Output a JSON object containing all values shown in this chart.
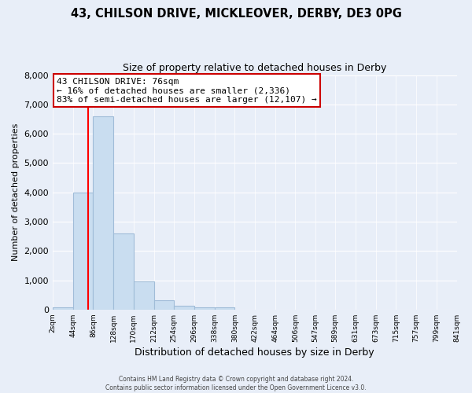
{
  "title": "43, CHILSON DRIVE, MICKLEOVER, DERBY, DE3 0PG",
  "subtitle": "Size of property relative to detached houses in Derby",
  "xlabel": "Distribution of detached houses by size in Derby",
  "ylabel": "Number of detached properties",
  "bin_edges": [
    2,
    44,
    86,
    128,
    170,
    212,
    254,
    296,
    338,
    380,
    422,
    464,
    506,
    547,
    589,
    631,
    673,
    715,
    757,
    799,
    841
  ],
  "bin_labels": [
    "2sqm",
    "44sqm",
    "86sqm",
    "128sqm",
    "170sqm",
    "212sqm",
    "254sqm",
    "296sqm",
    "338sqm",
    "380sqm",
    "422sqm",
    "464sqm",
    "506sqm",
    "547sqm",
    "589sqm",
    "631sqm",
    "673sqm",
    "715sqm",
    "757sqm",
    "799sqm",
    "841sqm"
  ],
  "bar_heights": [
    70,
    4000,
    6600,
    2600,
    960,
    330,
    140,
    80,
    70,
    0,
    0,
    0,
    0,
    0,
    0,
    0,
    0,
    0,
    0,
    0
  ],
  "bar_color": "#c9ddf0",
  "bar_edge_color": "#a0bcd8",
  "vline_x": 76,
  "vline_color": "red",
  "ylim": [
    0,
    8000
  ],
  "yticks": [
    0,
    1000,
    2000,
    3000,
    4000,
    5000,
    6000,
    7000,
    8000
  ],
  "annotation_text": "43 CHILSON DRIVE: 76sqm\n← 16% of detached houses are smaller (2,336)\n83% of semi-detached houses are larger (12,107) →",
  "annotation_box_color": "white",
  "annotation_box_edge": "#cc0000",
  "footer_line1": "Contains HM Land Registry data © Crown copyright and database right 2024.",
  "footer_line2": "Contains public sector information licensed under the Open Government Licence v3.0.",
  "background_color": "#e8eef8",
  "grid_color": "#ffffff",
  "title_fontsize": 10.5,
  "subtitle_fontsize": 9
}
